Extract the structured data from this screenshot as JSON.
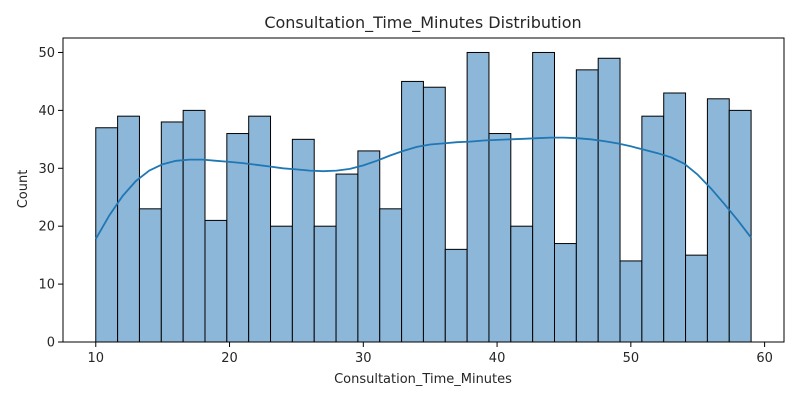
{
  "chart_data": {
    "type": "bar",
    "title": "Consultation_Time_Minutes Distribution",
    "xlabel": "Consultation_Time_Minutes",
    "ylabel": "Count",
    "xlim": [
      7.55,
      61.45
    ],
    "ylim": [
      0,
      52.5
    ],
    "x_ticks": [
      10,
      20,
      30,
      40,
      50,
      60
    ],
    "y_ticks": [
      0,
      10,
      20,
      30,
      40,
      50
    ],
    "grid": false,
    "bin_start": 10,
    "bin_width": 1.633,
    "counts": [
      37,
      39,
      23,
      38,
      40,
      21,
      36,
      39,
      20,
      35,
      20,
      29,
      33,
      23,
      45,
      44,
      16,
      50,
      36,
      20,
      50,
      17,
      47,
      49,
      14,
      39,
      43,
      15,
      42,
      40
    ],
    "kde": {
      "x": [
        10,
        11,
        12,
        13,
        14,
        15,
        16,
        17,
        18,
        19,
        20,
        21,
        22,
        23,
        24,
        25,
        26,
        27,
        28,
        29,
        30,
        31,
        32,
        33,
        34,
        35,
        36,
        37,
        38,
        39,
        40,
        41,
        42,
        43,
        44,
        45,
        46,
        47,
        48,
        49,
        50,
        51,
        52,
        53,
        54,
        55,
        56,
        57,
        58,
        59
      ],
      "y": [
        17.8,
        21.8,
        25.2,
        27.8,
        29.6,
        30.7,
        31.3,
        31.5,
        31.5,
        31.3,
        31.1,
        30.9,
        30.6,
        30.3,
        30.0,
        29.8,
        29.6,
        29.5,
        29.6,
        29.9,
        30.5,
        31.3,
        32.2,
        33.0,
        33.7,
        34.1,
        34.3,
        34.5,
        34.6,
        34.8,
        34.9,
        35.0,
        35.1,
        35.2,
        35.3,
        35.3,
        35.2,
        35.0,
        34.7,
        34.3,
        33.8,
        33.2,
        32.6,
        31.9,
        30.8,
        28.9,
        26.5,
        23.8,
        21.0,
        18.0
      ]
    },
    "colors": {
      "bar_fill": "#8db7d9",
      "bar_edge": "#000000",
      "kde_line": "#1f77b4"
    }
  }
}
